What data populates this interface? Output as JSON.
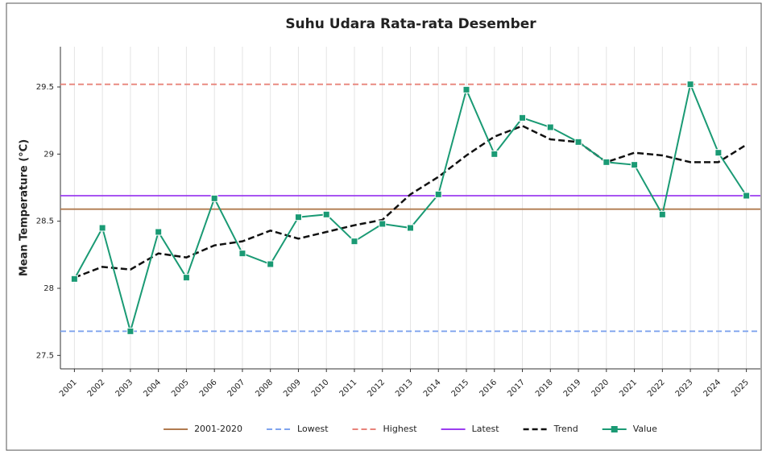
{
  "chart_data": {
    "type": "line",
    "title": "Suhu Udara Rata-rata Desember",
    "y_label": "Mean Temperature (°C)",
    "x": [
      2001,
      2002,
      2003,
      2004,
      2005,
      2006,
      2007,
      2008,
      2009,
      2010,
      2011,
      2012,
      2013,
      2014,
      2015,
      2016,
      2017,
      2018,
      2019,
      2020,
      2021,
      2022,
      2023,
      2024,
      2025
    ],
    "xlim": [
      2000.5,
      2025.5
    ],
    "xticks": [
      2001,
      2002,
      2003,
      2004,
      2005,
      2006,
      2007,
      2008,
      2009,
      2010,
      2011,
      2012,
      2013,
      2014,
      2015,
      2016,
      2017,
      2018,
      2019,
      2020,
      2021,
      2022,
      2023,
      2024,
      2025
    ],
    "ylim": [
      27.4,
      29.8
    ],
    "yticks": [
      27.5,
      28.0,
      28.5,
      29.0,
      29.5
    ],
    "grid": "x",
    "legend": "bottom",
    "reference_lines": [
      {
        "name": "2001-2020",
        "color": "#b07a4f",
        "dashed": false,
        "value": 28.59
      },
      {
        "name": "Lowest",
        "color": "#7fa4ee",
        "dashed": true,
        "value": 27.68
      },
      {
        "name": "Highest",
        "color": "#e8837a",
        "dashed": true,
        "value": 29.52
      },
      {
        "name": "Latest",
        "color": "#9b3df0",
        "dashed": false,
        "value": 28.69
      }
    ],
    "series": [
      {
        "name": "Trend",
        "color": "#111111",
        "dashed": true,
        "markers": false,
        "values": [
          28.08,
          28.16,
          28.14,
          28.26,
          28.23,
          28.32,
          28.35,
          28.43,
          28.37,
          28.42,
          28.47,
          28.51,
          28.7,
          28.83,
          28.99,
          29.13,
          29.21,
          29.11,
          29.09,
          28.94,
          29.01,
          28.99,
          28.94,
          28.94,
          29.07
        ]
      },
      {
        "name": "Value",
        "color": "#1a9a74",
        "dashed": false,
        "markers": true,
        "values": [
          28.07,
          28.45,
          27.68,
          28.42,
          28.08,
          28.67,
          28.26,
          28.18,
          28.53,
          28.55,
          28.35,
          28.48,
          28.45,
          28.7,
          29.48,
          29.0,
          29.27,
          29.2,
          29.09,
          28.94,
          28.92,
          28.55,
          29.52,
          29.01,
          28.69
        ]
      }
    ]
  }
}
